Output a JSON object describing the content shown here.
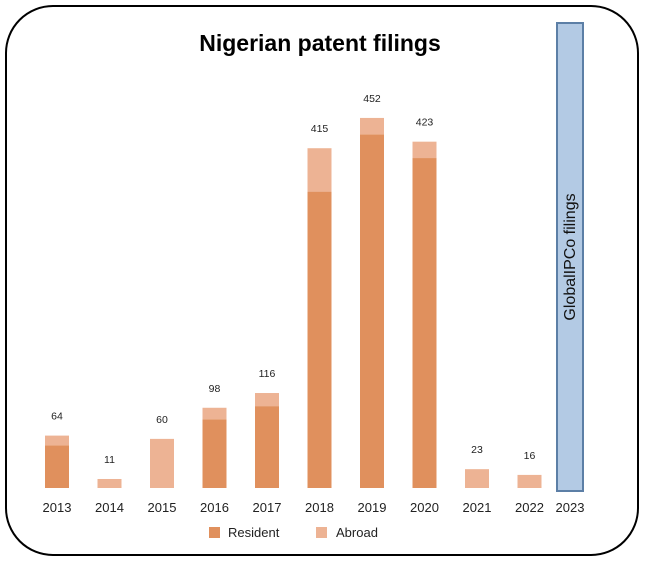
{
  "chart_data": {
    "type": "bar",
    "stacked": true,
    "title": "Nigerian patent filings",
    "categories": [
      "2013",
      "2014",
      "2015",
      "2016",
      "2017",
      "2018",
      "2019",
      "2020",
      "2021",
      "2022"
    ],
    "totals": [
      64,
      11,
      60,
      98,
      116,
      415,
      452,
      423,
      23,
      16
    ],
    "series": [
      {
        "name": "Resident",
        "color": "#e0905d",
        "values": [
          52,
          0,
          0,
          84,
          100,
          362,
          432,
          403,
          0,
          0
        ]
      },
      {
        "name": "Abroad",
        "color": "#edb394",
        "values": [
          12,
          11,
          60,
          14,
          16,
          53,
          20,
          20,
          23,
          16
        ]
      }
    ],
    "ylim": [
      0,
      480
    ],
    "legend_position": "bottom",
    "extra_category": {
      "label": "2023",
      "bar_text": "GlobalIPCo filings",
      "fill": "#b3cae4",
      "stroke": "#5c7fa6"
    }
  }
}
